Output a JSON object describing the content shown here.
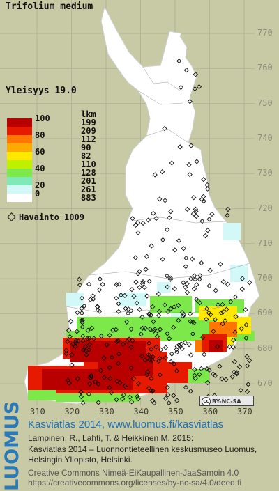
{
  "title": "Trifolium medium",
  "yleisyys": "Yleisyys  19.0",
  "legend": {
    "header": "lkm",
    "classes": [
      {
        "label": "100",
        "count": "199",
        "color": "#b80000"
      },
      {
        "label": "",
        "count": "209",
        "color": "#e61a00"
      },
      {
        "label": "80",
        "count": "112",
        "color": "#ff7700"
      },
      {
        "label": "",
        "count": "90",
        "color": "#ffaa00"
      },
      {
        "label": "60",
        "count": "82",
        "color": "#ffe800"
      },
      {
        "label": "",
        "count": "110",
        "color": "#bff000"
      },
      {
        "label": "40",
        "count": "128",
        "color": "#7ce84a"
      },
      {
        "label": "",
        "count": "201",
        "color": "#7fe9b8"
      },
      {
        "label": "20",
        "count": "261",
        "color": "#d2f8f8"
      },
      {
        "label": "0",
        "count": "883",
        "color": "#ffffff"
      }
    ]
  },
  "observations": "Havainto 1009",
  "grid": {
    "y_ticks": [
      "770",
      "760",
      "750",
      "740",
      "730",
      "720",
      "710",
      "700",
      "690",
      "680",
      "670"
    ],
    "x_ticks": [
      "310",
      "320",
      "330",
      "340",
      "350",
      "360",
      "370"
    ]
  },
  "license_badge": "BY-NC-SA",
  "brand": "LUOMUS",
  "footer": {
    "line1": "Kasviatlas 2014, www.luomus.fi/kasviatlas",
    "line2": "Lampinen, R., Lahti, T. & Heikkinen M. 2015:",
    "line3": "Kasviatlas 2014 – Luonnontieteellinen keskusmuseo Luomus,",
    "line4": "Helsingin Yliopisto, Helsinki.",
    "line5": "Creative Commons Nimeä-EiKaupallinen-JaaSamoin 4.0",
    "line6": "https://creativecommons.org/licenses/by-nc-sa/4.0/deed.fi"
  },
  "colors": {
    "background": "#c8c9a5",
    "map_land": "#ffffff",
    "brand_blue": "#2a7ab8"
  }
}
